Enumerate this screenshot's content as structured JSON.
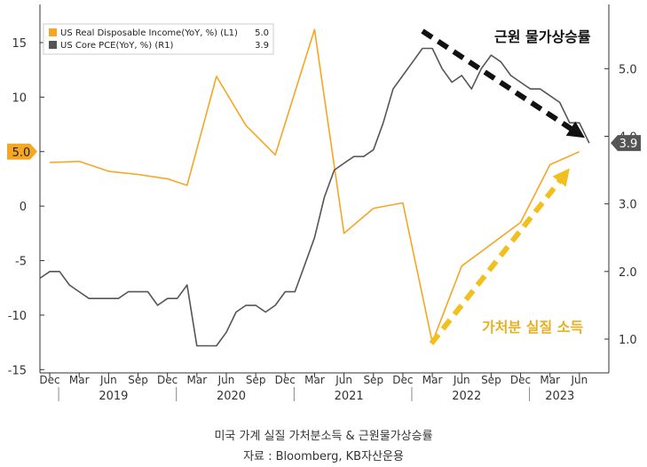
{
  "chart_data": {
    "type": "line",
    "legend": {
      "placement": "top-left",
      "entries": [
        {
          "label": "US Real Disposable Income(YoY, %) (L1)",
          "value": "5.0",
          "color": "#f5a623"
        },
        {
          "label": "US Core PCE(YoY, %) (R1)",
          "value": "3.9",
          "color": "#555555"
        }
      ]
    },
    "left_axis": {
      "ticks": [
        "15",
        "10",
        "5",
        "0",
        "-5",
        "-10",
        "-15"
      ],
      "tick_values": [
        15,
        10,
        5,
        0,
        -5,
        -10,
        -15
      ],
      "ylim": [
        -15.3,
        18.5
      ]
    },
    "right_axis": {
      "ticks": [
        "5.0",
        "4.0",
        "3.0",
        "2.0",
        "1.0"
      ],
      "tick_values": [
        5,
        4,
        3,
        2,
        1
      ],
      "ylim": [
        0.5,
        5.95
      ]
    },
    "x_month_labels": [
      "Dec",
      "Mar",
      "Jun",
      "Sep",
      "Dec",
      "Mar",
      "Jun",
      "Sep",
      "Dec",
      "Mar",
      "Jun",
      "Sep",
      "Dec",
      "Mar",
      "Jun",
      "Sep",
      "Dec",
      "Mar",
      "Jun"
    ],
    "x_year_labels": [
      {
        "label": "2019",
        "from": "2019-01",
        "to": "2019-12"
      },
      {
        "label": "2020",
        "from": "2020-01",
        "to": "2020-12"
      },
      {
        "label": "2021",
        "from": "2021-01",
        "to": "2021-12"
      },
      {
        "label": "2022",
        "from": "2022-01",
        "to": "2022-12"
      },
      {
        "label": "2023",
        "from": "2023-01",
        "to": "2023-07"
      }
    ],
    "xlim": [
      "2018-11",
      "2023-09"
    ],
    "value_tags": [
      {
        "text": "5.0",
        "axis": "left",
        "value": 5.0,
        "color": "#f5a623",
        "text_color": "#222222"
      },
      {
        "text": "3.9",
        "axis": "right",
        "value": 3.9,
        "color": "#555555",
        "text_color": "#ffffff"
      }
    ],
    "series": [
      {
        "name": "US Real Disposable Income(YoY, %) (L1)",
        "axis": "left",
        "color": "#f5a623",
        "x": [
          "2018-12",
          "2019-03",
          "2019-06",
          "2019-09",
          "2019-12",
          "2020-02",
          "2020-05",
          "2020-08",
          "2020-11",
          "2021-03",
          "2021-06",
          "2021-09",
          "2021-12",
          "2022-03",
          "2022-06",
          "2022-09",
          "2022-12",
          "2023-03",
          "2023-06"
        ],
        "values": [
          4.0,
          4.1,
          3.2,
          2.9,
          2.5,
          1.9,
          11.9,
          7.4,
          4.7,
          16.2,
          -2.5,
          -0.2,
          0.3,
          -12.5,
          -5.5,
          -3.5,
          -1.5,
          3.8,
          5.0
        ]
      },
      {
        "name": "US Core PCE(YoY, %) (R1)",
        "axis": "right",
        "color": "#555555",
        "x": [
          "2018-11",
          "2018-12",
          "2019-01",
          "2019-02",
          "2019-03",
          "2019-04",
          "2019-05",
          "2019-06",
          "2019-07",
          "2019-08",
          "2019-09",
          "2019-10",
          "2019-11",
          "2019-12",
          "2020-01",
          "2020-02",
          "2020-03",
          "2020-04",
          "2020-05",
          "2020-06",
          "2020-07",
          "2020-08",
          "2020-09",
          "2020-10",
          "2020-11",
          "2020-12",
          "2021-01",
          "2021-02",
          "2021-03",
          "2021-04",
          "2021-05",
          "2021-06",
          "2021-07",
          "2021-08",
          "2021-09",
          "2021-10",
          "2021-11",
          "2021-12",
          "2022-01",
          "2022-02",
          "2022-03",
          "2022-04",
          "2022-05",
          "2022-06",
          "2022-07",
          "2022-08",
          "2022-09",
          "2022-10",
          "2022-11",
          "2022-12",
          "2023-01",
          "2023-02",
          "2023-03",
          "2023-04",
          "2023-05",
          "2023-06",
          "2023-07"
        ],
        "values": [
          1.9,
          2.0,
          2.0,
          1.8,
          1.7,
          1.6,
          1.6,
          1.6,
          1.6,
          1.7,
          1.7,
          1.7,
          1.5,
          1.6,
          1.6,
          1.8,
          0.9,
          0.9,
          0.9,
          1.1,
          1.4,
          1.5,
          1.5,
          1.4,
          1.5,
          1.7,
          1.7,
          2.1,
          2.5,
          3.1,
          3.5,
          3.6,
          3.7,
          3.7,
          3.8,
          4.2,
          4.7,
          4.9,
          5.1,
          5.3,
          5.3,
          5.0,
          4.8,
          4.9,
          4.7,
          5.0,
          5.2,
          5.1,
          4.9,
          4.8,
          4.7,
          4.7,
          4.6,
          4.5,
          4.2,
          4.2,
          3.9
        ]
      }
    ],
    "annotations": [
      {
        "text": "근원 물가상승률",
        "color": "#111111"
      },
      {
        "text": "가처분 실질 소득",
        "color": "#e8b020"
      }
    ]
  },
  "caption": {
    "title": "미국 가계 실질 가처분소득 & 근원물가상승률",
    "source": "자료 : Bloomberg, KB자산운용"
  }
}
